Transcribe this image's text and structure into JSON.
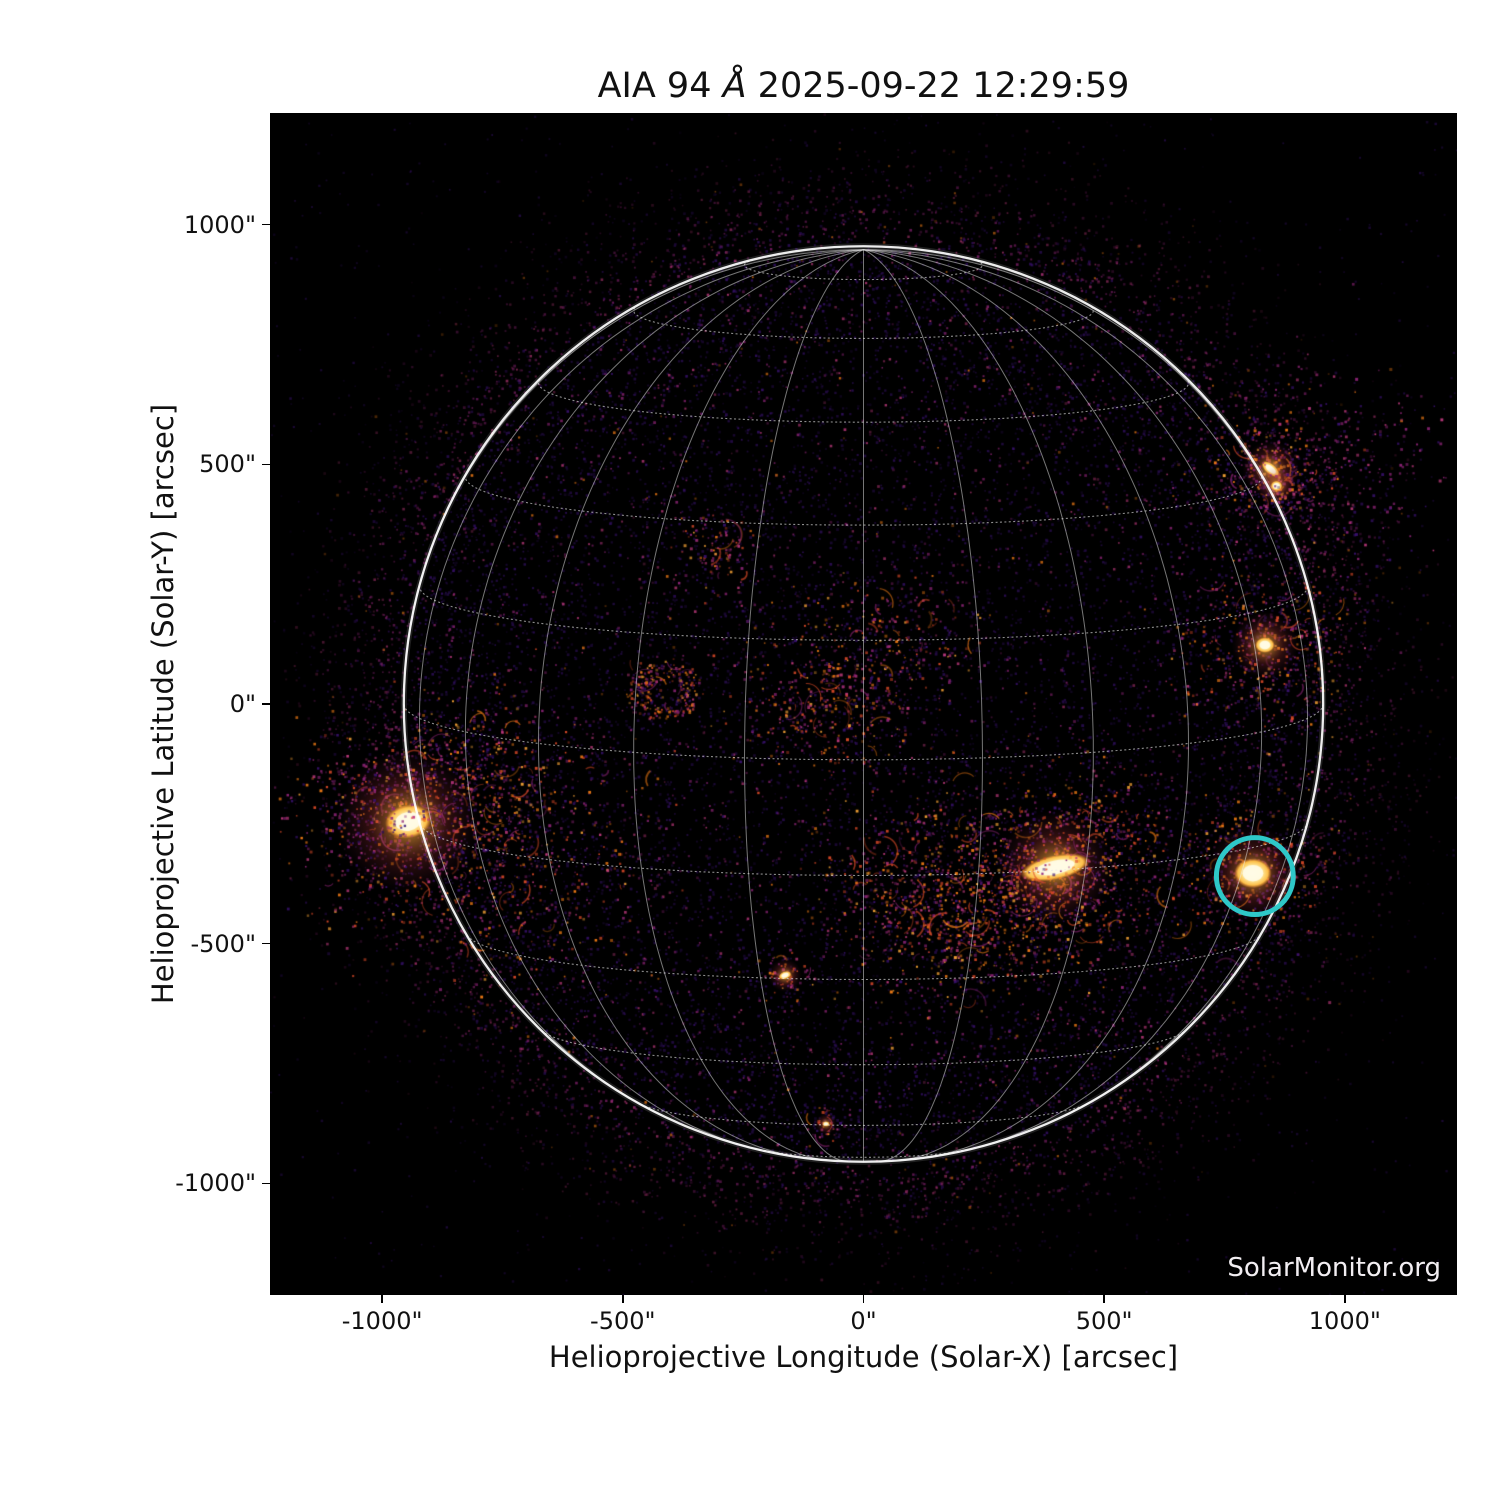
{
  "watermark": "SolarMonitor.org",
  "chart_data": {
    "type": "heatmap",
    "title": "AIA 94 Å 2025-09-22 12:29:59",
    "xlabel": "Helioprojective Longitude (Solar-X) [arcsec]",
    "ylabel": "Helioprojective Latitude (Solar-Y) [arcsec]",
    "xlim": [
      -1233,
      1233
    ],
    "ylim": [
      -1233,
      1233
    ],
    "grid": true,
    "x_ticks": [
      {
        "v": -1000,
        "label": "-1000\""
      },
      {
        "v": -500,
        "label": "-500\""
      },
      {
        "v": 0,
        "label": "0\""
      },
      {
        "v": 500,
        "label": "500\""
      },
      {
        "v": 1000,
        "label": "1000\""
      }
    ],
    "y_ticks": [
      {
        "v": 1000,
        "label": "1000\""
      },
      {
        "v": 500,
        "label": "500\""
      },
      {
        "v": 0,
        "label": "0\""
      },
      {
        "v": -500,
        "label": "-500\""
      },
      {
        "v": -1000,
        "label": "-1000\""
      }
    ],
    "solar_disk": {
      "radius_arcsec": 955,
      "b0_deg": 7,
      "grid_spacing_deg": 15,
      "grid_color": "#ebebeb",
      "limb_color": "#ffffff"
    },
    "annotation_circle": {
      "solar_x": 813,
      "solar_y": -359,
      "radius_arcsec": 80,
      "color": "#2EC8C8",
      "stroke_px": 5
    },
    "colormap": {
      "background": "#000000",
      "deep_purple": "#2a0e52",
      "violet": "#3b1273",
      "magenta": "#8f2478",
      "pink": "#c13a7f",
      "red_orange": "#dd4a28",
      "orange": "#f57d15",
      "amber": "#fca636",
      "yellow": "#fde389",
      "core": "#fffbe6"
    },
    "features": [
      {
        "name": "bright active region at east limb",
        "type": "core",
        "x": -946,
        "y": -245,
        "w": 72,
        "h": 52,
        "angle": -10,
        "halo": 150,
        "speckles": 420,
        "spread": 120
      },
      {
        "name": "plage east of limb AR",
        "type": "diffuse",
        "x": -755,
        "y": -300,
        "spread": 160,
        "speckles": 520
      },
      {
        "name": "plage east upper",
        "type": "diffuse",
        "x": -810,
        "y": -150,
        "spread": 80,
        "speckles": 160
      },
      {
        "name": "ring-shaped faint region",
        "type": "ring",
        "x": -416,
        "y": 30,
        "r": 55,
        "speckles": 230
      },
      {
        "name": "center disk wisps",
        "type": "diffuse",
        "x": -100,
        "y": -5,
        "spread": 95,
        "speckles": 300
      },
      {
        "name": "center wisps north-east",
        "type": "diffuse",
        "x": 60,
        "y": 125,
        "spread": 90,
        "speckles": 230
      },
      {
        "name": "small arc north-west of center",
        "type": "diffuse",
        "x": -304,
        "y": 325,
        "spread": 45,
        "speckles": 100
      },
      {
        "name": "plage south of center",
        "type": "diffuse",
        "x": 200,
        "y": -375,
        "spread": 135,
        "speckles": 520
      },
      {
        "name": "plage south of center 2",
        "type": "diffuse",
        "x": 115,
        "y": -425,
        "spread": 100,
        "speckles": 280
      },
      {
        "name": "bright elongated active region",
        "type": "core",
        "x": 398,
        "y": -341,
        "w": 110,
        "h": 38,
        "angle": -12,
        "halo": 120,
        "speckles": 420,
        "spread": 110
      },
      {
        "name": "active region tail",
        "type": "diffuse",
        "x": 470,
        "y": -285,
        "spread": 85,
        "speckles": 180
      },
      {
        "name": "plage below elongated AR",
        "type": "diffuse",
        "x": 346,
        "y": -417,
        "spread": 90,
        "speckles": 220
      },
      {
        "name": "circled active region west",
        "type": "core",
        "x": 809,
        "y": -353,
        "w": 58,
        "h": 46,
        "angle": 0,
        "halo": 100,
        "speckles": 300,
        "spread": 85
      },
      {
        "name": "active region west limb",
        "type": "core",
        "x": 834,
        "y": 123,
        "w": 30,
        "h": 24,
        "angle": 0,
        "halo": 70,
        "speckles": 340,
        "spread": 95
      },
      {
        "name": "active region north-west limb",
        "type": "core",
        "x": 846,
        "y": 490,
        "w": 34,
        "h": 16,
        "angle": 40,
        "halo": 60,
        "speckles": 190,
        "spread": 60
      },
      {
        "name": "bright dot north-west limb",
        "type": "core",
        "x": 858,
        "y": 455,
        "w": 18,
        "h": 16,
        "angle": 0,
        "halo": 40,
        "speckles": 60,
        "spread": 30
      },
      {
        "name": "bright point south",
        "type": "core",
        "x": -163,
        "y": -566,
        "w": 20,
        "h": 12,
        "angle": -20,
        "halo": 35,
        "speckles": 60,
        "spread": 28
      },
      {
        "name": "bright point far south",
        "type": "core",
        "x": -78,
        "y": -876,
        "w": 11,
        "h": 8,
        "angle": 0,
        "halo": 22,
        "speckles": 25,
        "spread": 16
      },
      {
        "name": "haze outside north-west limb",
        "type": "haze",
        "x": 969,
        "y": 488,
        "spread": 130,
        "speckles": 380
      },
      {
        "name": "haze outside east limb",
        "type": "haze",
        "x": -1010,
        "y": -215,
        "spread": 105,
        "speckles": 260
      }
    ]
  }
}
